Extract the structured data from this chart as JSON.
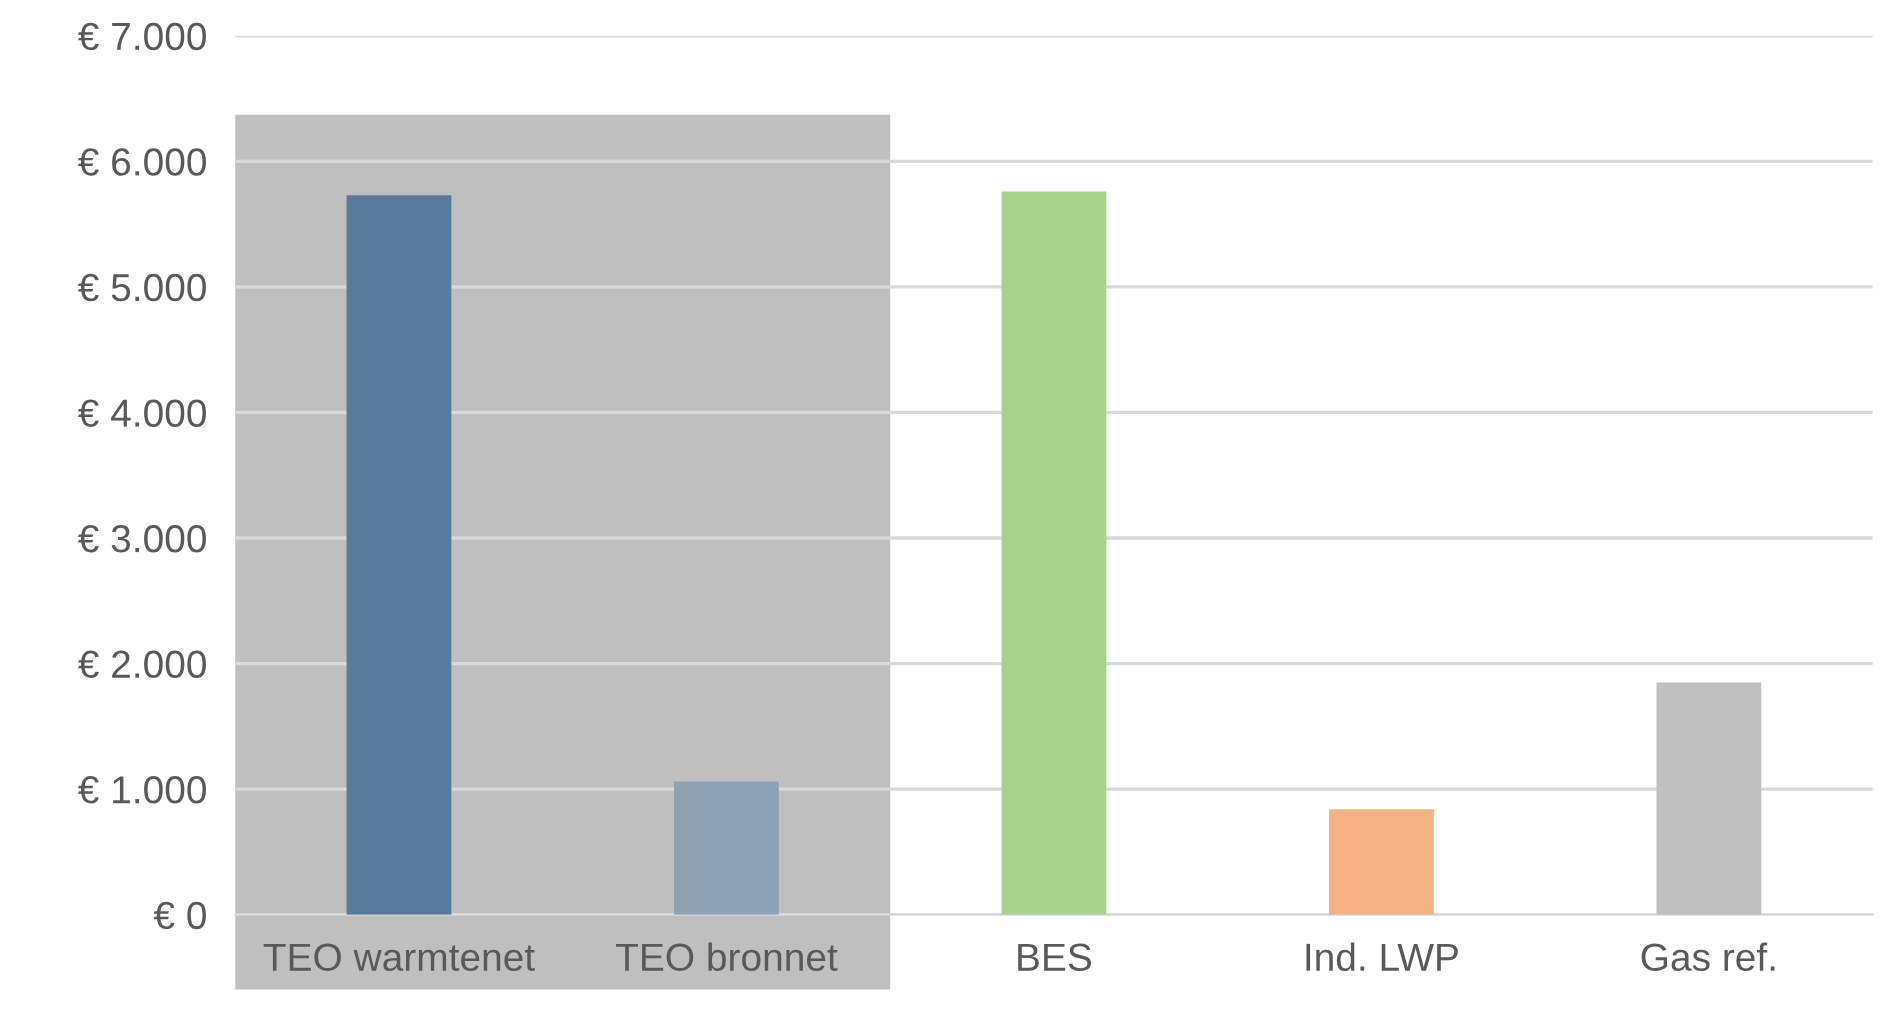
{
  "chart_data": {
    "type": "bar",
    "categories": [
      "TEO warmtenet",
      "TEO bronnet",
      "BES",
      "Ind. LWP",
      "Gas ref."
    ],
    "values": [
      5730,
      1060,
      5760,
      840,
      1850
    ],
    "colors": [
      "#587a9c",
      "#8ea2b5",
      "#a9d18e",
      "#f4b183",
      "#bfbfbf"
    ],
    "ylim": [
      0,
      7000
    ],
    "yticks": [
      {
        "value": 0,
        "label": "€ 0"
      },
      {
        "value": 1000,
        "label": "€ 1.000"
      },
      {
        "value": 2000,
        "label": "€ 2.000"
      },
      {
        "value": 3000,
        "label": "€ 3.000"
      },
      {
        "value": 4000,
        "label": "€ 4.000"
      },
      {
        "value": 5000,
        "label": "€ 5.000"
      },
      {
        "value": 6000,
        "label": "€ 6.000"
      },
      {
        "value": 7000,
        "label": "€ 7.000"
      }
    ],
    "grid": "y"
  }
}
